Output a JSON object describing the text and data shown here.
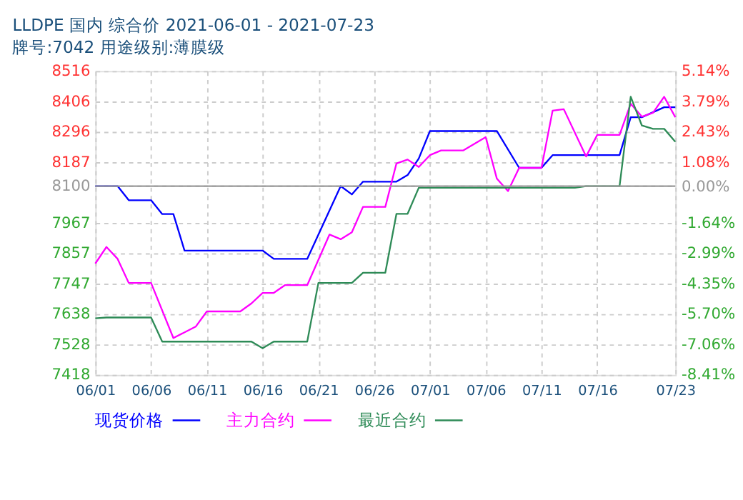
{
  "chart_data": {
    "type": "line",
    "title": "LLDPE 国内 综合价 2021-06-01 - 2021-07-23",
    "subtitle": "牌号:7042 用途级别:薄膜级",
    "xlim": [
      "2021-06-01",
      "2021-07-23"
    ],
    "xticks": [
      {
        "value": "2021-06-01",
        "label": "06/01"
      },
      {
        "value": "2021-06-06",
        "label": "06/06"
      },
      {
        "value": "2021-06-11",
        "label": "06/11"
      },
      {
        "value": "2021-06-16",
        "label": "06/16"
      },
      {
        "value": "2021-06-21",
        "label": "06/21"
      },
      {
        "value": "2021-06-26",
        "label": "06/26"
      },
      {
        "value": "2021-07-01",
        "label": "07/01"
      },
      {
        "value": "2021-07-06",
        "label": "07/06"
      },
      {
        "value": "2021-07-11",
        "label": "07/11"
      },
      {
        "value": "2021-07-16",
        "label": "07/16"
      },
      {
        "value": "2021-07-23",
        "label": "07/23"
      }
    ],
    "ylim": [
      7418,
      8516
    ],
    "yticks": [
      8516,
      8406,
      8296,
      8187,
      8100,
      7967,
      7857,
      7747,
      7638,
      7528,
      7418
    ],
    "y2lim": [
      -8.41,
      5.14
    ],
    "y2ticks": [
      {
        "value": 5.14,
        "label": "5.14%"
      },
      {
        "value": 3.79,
        "label": "3.79%"
      },
      {
        "value": 2.43,
        "label": "2.43%"
      },
      {
        "value": 1.08,
        "label": "1.08%"
      },
      {
        "value": 0,
        "label": "0.00%"
      },
      {
        "value": -1.64,
        "label": "-1.64%"
      },
      {
        "value": -2.99,
        "label": "-2.99%"
      },
      {
        "value": -4.35,
        "label": "-4.35%"
      },
      {
        "value": -5.7,
        "label": "-5.70%"
      },
      {
        "value": -7.06,
        "label": "-7.06%"
      },
      {
        "value": -8.41,
        "label": "-8.41%"
      }
    ],
    "ref_lines": [
      {
        "axis": "y",
        "value": 8100,
        "color": "#999999"
      }
    ],
    "grid": true,
    "legend": "bottom",
    "line_style": "solid",
    "series": [
      {
        "name": "现货价格",
        "color": "#0000ff",
        "x": [
          "2021-06-01",
          "2021-06-03",
          "2021-06-04",
          "2021-06-06",
          "2021-06-07",
          "2021-06-08",
          "2021-06-09",
          "2021-06-16",
          "2021-06-17",
          "2021-06-20",
          "2021-06-23",
          "2021-06-24",
          "2021-06-25",
          "2021-06-28",
          "2021-06-29",
          "2021-06-30",
          "2021-07-01",
          "2021-07-07",
          "2021-07-09",
          "2021-07-11",
          "2021-07-12",
          "2021-07-18",
          "2021-07-19",
          "2021-07-20",
          "2021-07-22",
          "2021-07-23"
        ],
        "values": [
          8100,
          8100,
          8049,
          8049,
          7999,
          7999,
          7867,
          7867,
          7837,
          7837,
          8100,
          8070,
          8116,
          8116,
          8140,
          8200,
          8299,
          8299,
          8166,
          8166,
          8212,
          8212,
          8349,
          8349,
          8385,
          8385
        ]
      },
      {
        "name": "主力合约",
        "color": "#ff00ff",
        "x": [
          "2021-06-01",
          "2021-06-02",
          "2021-06-03",
          "2021-06-04",
          "2021-06-06",
          "2021-06-08",
          "2021-06-10",
          "2021-06-11",
          "2021-06-14",
          "2021-06-15",
          "2021-06-16",
          "2021-06-17",
          "2021-06-18",
          "2021-06-20",
          "2021-06-22",
          "2021-06-23",
          "2021-06-24",
          "2021-06-25",
          "2021-06-27",
          "2021-06-28",
          "2021-06-29",
          "2021-06-30",
          "2021-07-01",
          "2021-07-02",
          "2021-07-04",
          "2021-07-06",
          "2021-07-07",
          "2021-07-08",
          "2021-07-09",
          "2021-07-11",
          "2021-07-12",
          "2021-07-13",
          "2021-07-15",
          "2021-07-16",
          "2021-07-18",
          "2021-07-19",
          "2021-07-20",
          "2021-07-21",
          "2021-07-22",
          "2021-07-23"
        ],
        "values": [
          7820,
          7880,
          7837,
          7750,
          7750,
          7551,
          7592,
          7647,
          7647,
          7676,
          7714,
          7714,
          7742,
          7742,
          7925,
          7908,
          7933,
          8025,
          8025,
          8182,
          8196,
          8169,
          8212,
          8229,
          8229,
          8277,
          8127,
          8082,
          8166,
          8166,
          8373,
          8378,
          8207,
          8285,
          8285,
          8398,
          8351,
          8365,
          8423,
          8349
        ]
      },
      {
        "name": "最近合约",
        "color": "#2e8b57",
        "x": [
          "2021-06-01",
          "2021-06-02",
          "2021-06-06",
          "2021-06-07",
          "2021-06-15",
          "2021-06-16",
          "2021-06-17",
          "2021-06-20",
          "2021-06-21",
          "2021-06-24",
          "2021-06-25",
          "2021-06-27",
          "2021-06-28",
          "2021-06-29",
          "2021-06-30",
          "2021-07-14",
          "2021-07-15",
          "2021-07-18",
          "2021-07-19",
          "2021-07-20",
          "2021-07-21",
          "2021-07-22",
          "2021-07-23"
        ],
        "values": [
          7622,
          7625,
          7625,
          7538,
          7538,
          7514,
          7538,
          7538,
          7750,
          7750,
          7787,
          7787,
          8000,
          8000,
          8094,
          8094,
          8100,
          8100,
          8423,
          8319,
          8307,
          8307,
          8260
        ]
      }
    ]
  }
}
